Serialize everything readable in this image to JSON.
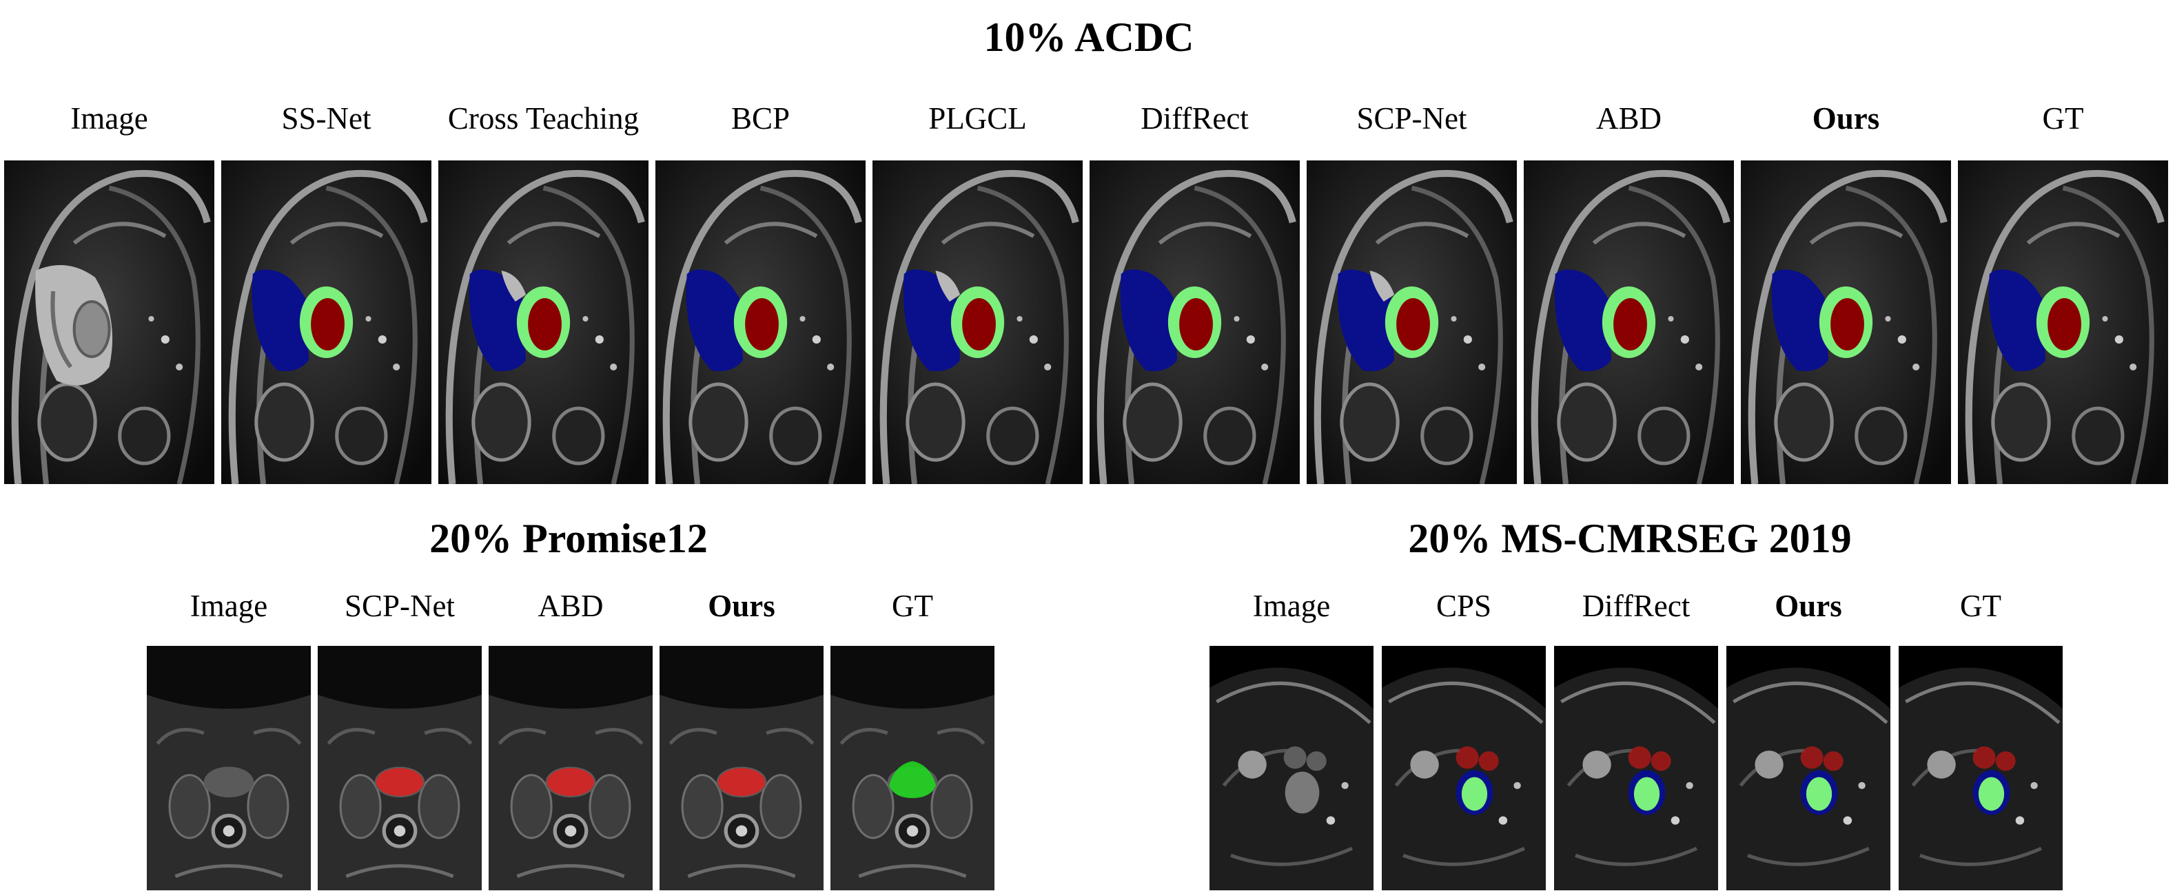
{
  "acdc": {
    "title": "10% ACDC",
    "columns": [
      {
        "label": "Image",
        "bold": false,
        "overlay": "none"
      },
      {
        "label": "SS-Net",
        "bold": false,
        "overlay": "cardiac"
      },
      {
        "label": "Cross Teaching",
        "bold": false,
        "overlay": "cardiac-partial"
      },
      {
        "label": "BCP",
        "bold": false,
        "overlay": "cardiac"
      },
      {
        "label": "PLGCL",
        "bold": false,
        "overlay": "cardiac-partial"
      },
      {
        "label": "DiffRect",
        "bold": false,
        "overlay": "cardiac"
      },
      {
        "label": "SCP-Net",
        "bold": false,
        "overlay": "cardiac-partial"
      },
      {
        "label": "ABD",
        "bold": false,
        "overlay": "cardiac"
      },
      {
        "label": "Ours",
        "bold": true,
        "overlay": "cardiac"
      },
      {
        "label": "GT",
        "bold": false,
        "overlay": "cardiac"
      }
    ]
  },
  "promise": {
    "title": "20% Promise12",
    "columns": [
      {
        "label": "Image",
        "bold": false,
        "overlay": "none"
      },
      {
        "label": "SCP-Net",
        "bold": false,
        "overlay": "red"
      },
      {
        "label": "ABD",
        "bold": false,
        "overlay": "red"
      },
      {
        "label": "Ours",
        "bold": true,
        "overlay": "red"
      },
      {
        "label": "GT",
        "bold": false,
        "overlay": "green"
      }
    ]
  },
  "mscmr": {
    "title": "20% MS-CMRSEG 2019",
    "columns": [
      {
        "label": "Image",
        "bold": false,
        "overlay": "none"
      },
      {
        "label": "CPS",
        "bold": false,
        "overlay": "seg"
      },
      {
        "label": "DiffRect",
        "bold": false,
        "overlay": "seg"
      },
      {
        "label": "Ours",
        "bold": true,
        "overlay": "seg"
      },
      {
        "label": "GT",
        "bold": false,
        "overlay": "seg"
      }
    ]
  },
  "colors": {
    "rv": "#0a0f8c",
    "myo": "#7cf07c",
    "lv": "#8a0000",
    "prostate_pred": "#e0201e",
    "prostate_gt": "#1fd41f"
  }
}
